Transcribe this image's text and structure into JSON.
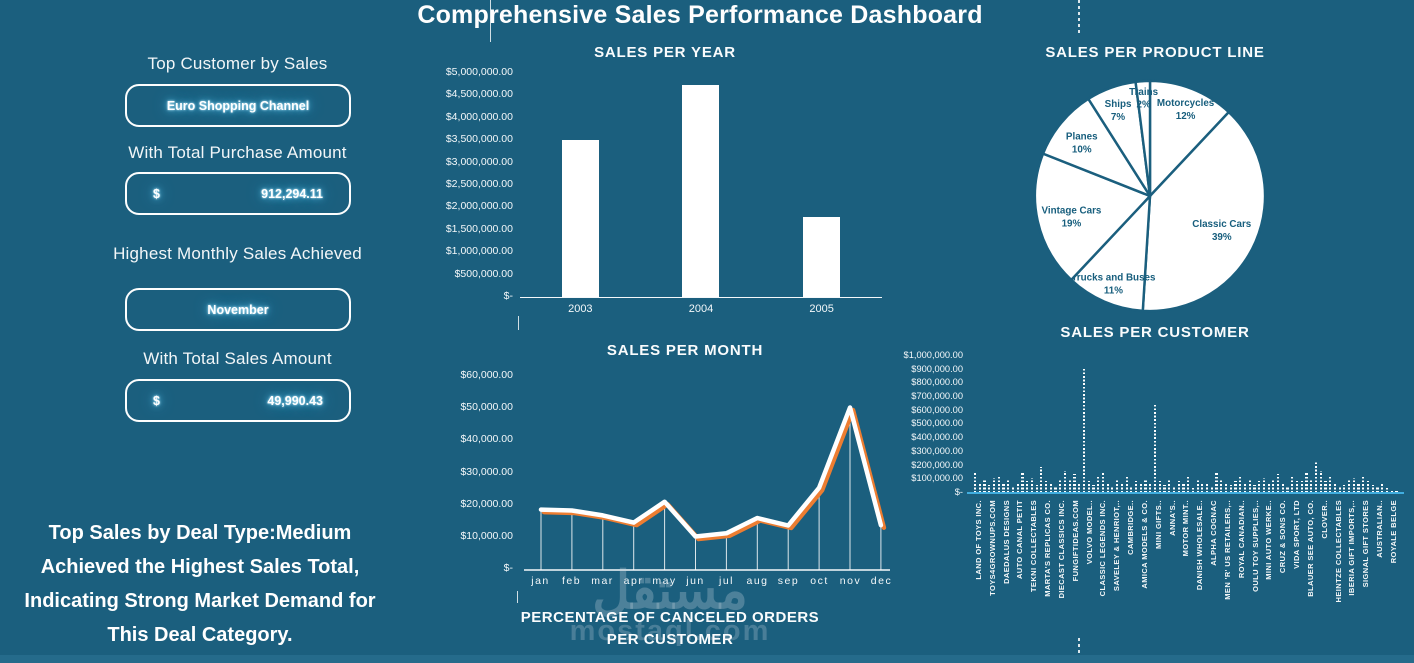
{
  "app_title": "Comprehensive Sales Performance Dashboard",
  "watermark": {
    "arabic": "مستقل",
    "latin": "mostaql.com"
  },
  "colors": {
    "background": "#1B5F7E",
    "bottom_strip": "#256B8B",
    "accent_orange": "#ED7D31",
    "axis_blue": "#41AEE0",
    "glow_blue": "#5BC8F5",
    "pie_fill": "#FFFFFF",
    "pie_label": "#175E7D",
    "bar_white": "#FFFFFF"
  },
  "left_panel": {
    "sections": [
      {
        "heading": "Top Customer by Sales",
        "prefix": "",
        "value": "Euro Shopping Channel"
      },
      {
        "heading": "With Total Purchase Amount",
        "prefix": "$",
        "value": "912,294.11"
      },
      {
        "heading": "Highest Monthly Sales Achieved",
        "prefix": "",
        "value": "November"
      },
      {
        "heading": "With Total Sales Amount",
        "prefix": "$",
        "value": "49,990.43"
      }
    ],
    "insight": "Top Sales by Deal Type:Medium Achieved the Highest Sales Total, Indicating Strong Market Demand for This Deal Category."
  },
  "canceled_orders_title": "PERCENTAGE OF CANCELED ORDERS PER CUSTOMER",
  "chart_data": [
    {
      "id": "sales_per_year",
      "type": "bar",
      "title": "SALES PER YEAR",
      "categories": [
        "2003",
        "2004",
        "2005"
      ],
      "values": [
        3500000,
        4720000,
        1770000
      ],
      "ylim": [
        0,
        5000000
      ],
      "yticks": [
        "$5,000,000.00",
        "$4,500,000.00",
        "$4,000,000.00",
        "$3,500,000.00",
        "$3,000,000.00",
        "$2,500,000.00",
        "$2,000,000.00",
        "$1,500,000.00",
        "$1,000,000.00",
        "$500,000.00",
        "$-"
      ],
      "grid": false,
      "legend": "none",
      "bar_color": "#FFFFFF"
    },
    {
      "id": "sales_per_month",
      "type": "line",
      "title": "SALES PER MONTH",
      "categories": [
        "jan",
        "feb",
        "mar",
        "apr",
        "may",
        "jun",
        "jul",
        "aug",
        "sep",
        "oct",
        "nov",
        "dec"
      ],
      "values": [
        18600,
        18300,
        16800,
        14600,
        21000,
        10300,
        11300,
        16000,
        13700,
        25300,
        49990,
        13800
      ],
      "ylim": [
        0,
        60000
      ],
      "yticks": [
        "$60,000.00",
        "$50,000.00",
        "$40,000.00",
        "$30,000.00",
        "$20,000.00",
        "$10,000.00",
        "$-"
      ],
      "line_color": "#FFFFFF",
      "shadow_color": "#ED7D31",
      "drop_lines": true,
      "grid": false,
      "legend": "none"
    },
    {
      "id": "sales_per_product_line",
      "type": "pie",
      "title": "SALES PER PRODUCT LINE",
      "start_angle_deg": 0,
      "direction": "clockwise",
      "legend": "none",
      "slices": [
        {
          "label": "Motorcycles",
          "pct": 12
        },
        {
          "label": "Classic Cars",
          "pct": 39
        },
        {
          "label": "Trucks and Buses",
          "pct": 11
        },
        {
          "label": "Vintage Cars",
          "pct": 19
        },
        {
          "label": "Planes",
          "pct": 10
        },
        {
          "label": "Ships",
          "pct": 7
        },
        {
          "label": "Trains",
          "pct": 2
        }
      ]
    },
    {
      "id": "sales_per_customer",
      "type": "bar",
      "title": "SALES  PER CUSTOMER",
      "ylim": [
        0,
        1000000
      ],
      "yticks": [
        "$1,000,000.00",
        "$900,000.00",
        "$800,000.00",
        "$700,000.00",
        "$600,000.00",
        "$500,000.00",
        "$400,000.00",
        "$300,000.00",
        "$200,000.00",
        "$100,000.00",
        "$-"
      ],
      "bar_style": "dashed",
      "bar_color": "#FFFFFF",
      "axis_color": "#41AEE0",
      "legend": "none",
      "x_labels_visible": [
        "LAND OF TOYS INC.",
        "TOYS4GROWNUPS.COM",
        "DAEDALUS DESIGNS",
        "AUTO CANAL PETIT",
        "TEKNI COLLECTABLES",
        "MARTA'S REPLICAS CO.",
        "DIECAST CLASSICS INC.",
        "FUNGIFTIDEAS.COM",
        "VOLVO MODEL..",
        "CLASSIC LEGENDS INC.",
        "SAVELEY & HENRIOT,..",
        "CAMBRIDGE..",
        "AMICA MODELS & CO.",
        "MINI GIFTS..",
        "ANNA'S..",
        "MOTOR MINT..",
        "DANISH WHOLESALE..",
        "ALPHA COGNAC",
        "MEN 'R' US RETAILERS,..",
        "ROYAL CANADIAN..",
        "OULU TOY SUPPLIES,..",
        "MINI AUTO WERKE..",
        "CRUZ & SONS CO.",
        "VIDA SPORT, LTD",
        "BLAUER SEE AUTO, CO.",
        "CLOVER..",
        "HEINTZE COLLECTABLES",
        "IBERIA GIFT IMPORTS,..",
        "SIGNAL GIFT STORES",
        "AUSTRALIAN..",
        "ROYALE BELGE"
      ],
      "values": [
        152000,
        64000,
        98000,
        59000,
        112000,
        118000,
        70000,
        95000,
        45000,
        80000,
        150000,
        85000,
        112000,
        60000,
        192000,
        90000,
        72000,
        55000,
        100000,
        160000,
        95000,
        140000,
        75000,
        912294,
        85000,
        60000,
        120000,
        148000,
        80000,
        55000,
        95000,
        70000,
        115000,
        50000,
        85000,
        65000,
        95000,
        75000,
        655000,
        90000,
        60000,
        105000,
        55000,
        85000,
        70000,
        120000,
        40000,
        95000,
        65000,
        80000,
        55000,
        150000,
        100000,
        70000,
        60000,
        90000,
        130000,
        75000,
        95000,
        60000,
        85000,
        110000,
        65000,
        95000,
        140000,
        75000,
        55000,
        120000,
        85000,
        90000,
        150000,
        95000,
        228000,
        160000,
        90000,
        130000,
        70000,
        45000,
        60000,
        95000,
        110000,
        75000,
        130000,
        90000,
        60000,
        45000,
        80000,
        35000,
        25000,
        18000
      ]
    }
  ]
}
